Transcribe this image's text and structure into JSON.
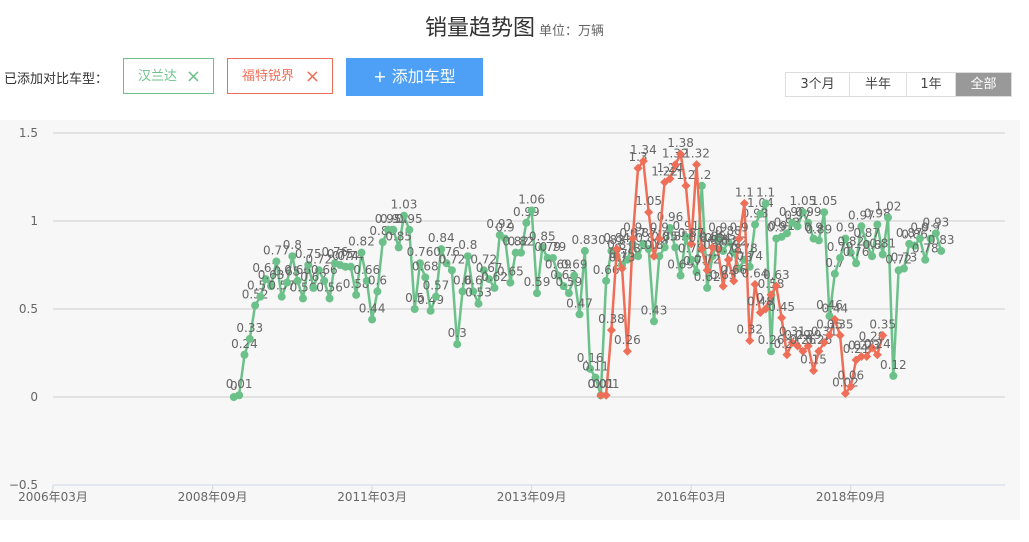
{
  "header": {
    "title": "销量趋势图",
    "unit": "单位：万辆"
  },
  "compare": {
    "label": "已添加对比车型：",
    "tags": [
      {
        "name": "汉兰达",
        "close": "×",
        "color": "#6cc18a"
      },
      {
        "name": "福特锐界",
        "close": "×",
        "color": "#ee6e57"
      }
    ],
    "add_button": "+ 添加车型"
  },
  "ranges": [
    "3个月",
    "半年",
    "1年",
    "全部"
  ],
  "ranges_selected": "全部",
  "chart_data": {
    "type": "line",
    "xlim": [
      "2006-03",
      "2021-02"
    ],
    "ylim": [
      -0.5,
      1.5
    ],
    "y_ticks": [
      "1.5",
      "1",
      "0.5",
      "0",
      "−0.5"
    ],
    "x_ticks": [
      "2006年03月",
      "2008年09月",
      "2011年03月",
      "2013年09月",
      "2016年03月",
      "2018年09月"
    ],
    "grid": true,
    "series": [
      {
        "name": "汉兰达",
        "color": "#6cc18a",
        "points": [
          [
            "2009-01",
            0.0
          ],
          [
            "2009-02",
            0.01
          ],
          [
            "2009-03",
            0.24
          ],
          [
            "2009-04",
            0.33
          ],
          [
            "2009-05",
            0.52
          ],
          [
            "2009-06",
            0.57
          ],
          [
            "2009-07",
            0.67
          ],
          [
            "2009-08",
            0.63
          ],
          [
            "2009-09",
            0.77
          ],
          [
            "2009-10",
            0.57
          ],
          [
            "2009-11",
            0.65
          ],
          [
            "2009-12",
            0.8
          ],
          [
            "2010-01",
            0.66
          ],
          [
            "2010-02",
            0.56
          ],
          [
            "2010-03",
            0.75
          ],
          [
            "2010-04",
            0.62
          ],
          [
            "2010-05",
            0.72
          ],
          [
            "2010-06",
            0.66
          ],
          [
            "2010-07",
            0.56
          ],
          [
            "2010-08",
            0.76
          ],
          [
            "2010-09",
            0.75
          ],
          [
            "2010-10",
            0.74
          ],
          [
            "2010-11",
            0.74
          ],
          [
            "2010-12",
            0.58
          ],
          [
            "2011-01",
            0.82
          ],
          [
            "2011-02",
            0.66
          ],
          [
            "2011-03",
            0.44
          ],
          [
            "2011-04",
            0.6
          ],
          [
            "2011-05",
            0.88
          ],
          [
            "2011-06",
            0.95
          ],
          [
            "2011-07",
            0.95
          ],
          [
            "2011-08",
            0.85
          ],
          [
            "2011-09",
            1.03
          ],
          [
            "2011-10",
            0.95
          ],
          [
            "2011-11",
            0.5
          ],
          [
            "2011-12",
            0.76
          ],
          [
            "2012-01",
            0.68
          ],
          [
            "2012-02",
            0.49
          ],
          [
            "2012-03",
            0.57
          ],
          [
            "2012-04",
            0.84
          ],
          [
            "2012-05",
            0.76
          ],
          [
            "2012-06",
            0.72
          ],
          [
            "2012-07",
            0.3
          ],
          [
            "2012-08",
            0.6
          ],
          [
            "2012-09",
            0.8
          ],
          [
            "2012-10",
            0.6
          ],
          [
            "2012-11",
            0.53
          ],
          [
            "2012-12",
            0.72
          ],
          [
            "2013-01",
            0.67
          ],
          [
            "2013-02",
            0.62
          ],
          [
            "2013-03",
            0.92
          ],
          [
            "2013-04",
            0.9
          ],
          [
            "2013-05",
            0.65
          ],
          [
            "2013-06",
            0.82
          ],
          [
            "2013-07",
            0.82
          ],
          [
            "2013-08",
            0.99
          ],
          [
            "2013-09",
            1.06
          ],
          [
            "2013-10",
            0.59
          ],
          [
            "2013-11",
            0.85
          ],
          [
            "2013-12",
            0.79
          ],
          [
            "2014-01",
            0.79
          ],
          [
            "2014-02",
            0.69
          ],
          [
            "2014-03",
            0.63
          ],
          [
            "2014-04",
            0.59
          ],
          [
            "2014-05",
            0.69
          ],
          [
            "2014-06",
            0.47
          ],
          [
            "2014-07",
            0.83
          ],
          [
            "2014-08",
            0.16
          ],
          [
            "2014-09",
            0.11
          ],
          [
            "2014-10",
            0.01
          ],
          [
            "2014-11",
            0.66
          ],
          [
            "2014-12",
            0.83
          ],
          [
            "2015-01",
            0.8
          ],
          [
            "2015-02",
            0.75
          ],
          [
            "2015-03",
            0.78
          ],
          [
            "2015-04",
            0.87
          ],
          [
            "2015-05",
            0.8
          ],
          [
            "2015-06",
            0.87
          ],
          [
            "2015-07",
            0.84
          ],
          [
            "2015-08",
            0.43
          ],
          [
            "2015-09",
            0.8
          ],
          [
            "2015-10",
            0.85
          ],
          [
            "2015-11",
            0.96
          ],
          [
            "2015-12",
            0.85
          ],
          [
            "2016-01",
            0.69
          ],
          [
            "2016-02",
            0.91
          ],
          [
            "2016-03",
            0.78
          ],
          [
            "2016-04",
            0.71
          ],
          [
            "2016-05",
            1.2
          ],
          [
            "2016-06",
            0.62
          ],
          [
            "2016-07",
            0.8
          ],
          [
            "2016-08",
            0.9
          ],
          [
            "2016-09",
            0.83
          ],
          [
            "2016-10",
            0.88
          ],
          [
            "2016-11",
            0.82
          ],
          [
            "2016-12",
            0.73
          ],
          [
            "2017-01",
            0.78
          ],
          [
            "2017-02",
            0.74
          ],
          [
            "2017-03",
            0.98
          ],
          [
            "2017-04",
            1.04
          ],
          [
            "2017-05",
            1.1
          ],
          [
            "2017-06",
            0.26
          ],
          [
            "2017-07",
            0.9
          ],
          [
            "2017-08",
            0.91
          ],
          [
            "2017-09",
            0.93
          ],
          [
            "2017-10",
            0.99
          ],
          [
            "2017-11",
            0.97
          ],
          [
            "2017-12",
            1.05
          ],
          [
            "2018-01",
            0.99
          ],
          [
            "2018-02",
            0.9
          ],
          [
            "2018-03",
            0.89
          ],
          [
            "2018-04",
            1.05
          ],
          [
            "2018-05",
            0.46
          ],
          [
            "2018-06",
            0.7
          ],
          [
            "2018-07",
            0.79
          ],
          [
            "2018-08",
            0.9
          ],
          [
            "2018-09",
            0.82
          ],
          [
            "2018-10",
            0.76
          ],
          [
            "2018-11",
            0.97
          ],
          [
            "2018-12",
            0.87
          ],
          [
            "2019-01",
            0.8
          ],
          [
            "2019-02",
            0.98
          ],
          [
            "2019-03",
            0.81
          ],
          [
            "2019-04",
            1.02
          ],
          [
            "2019-05",
            0.12
          ],
          [
            "2019-06",
            0.72
          ],
          [
            "2019-07",
            0.73
          ],
          [
            "2019-08",
            0.87
          ],
          [
            "2019-09",
            0.86
          ],
          [
            "2019-10",
            0.9
          ],
          [
            "2019-11",
            0.78
          ],
          [
            "2019-12",
            0.9
          ],
          [
            "2020-01",
            0.93
          ],
          [
            "2020-02",
            0.83
          ]
        ]
      },
      {
        "name": "福特锐界",
        "color": "#ee6e57",
        "points": [
          [
            "2014-10",
            0.01
          ],
          [
            "2014-11",
            0.01
          ],
          [
            "2014-12",
            0.38
          ],
          [
            "2015-01",
            0.84
          ],
          [
            "2015-02",
            0.73
          ],
          [
            "2015-03",
            0.26
          ],
          [
            "2015-04",
            0.9
          ],
          [
            "2015-05",
            1.3
          ],
          [
            "2015-06",
            1.34
          ],
          [
            "2015-07",
            1.05
          ],
          [
            "2015-08",
            0.8
          ],
          [
            "2015-09",
            0.9
          ],
          [
            "2015-10",
            1.22
          ],
          [
            "2015-11",
            1.24
          ],
          [
            "2015-12",
            1.32
          ],
          [
            "2016-01",
            1.38
          ],
          [
            "2016-02",
            1.2
          ],
          [
            "2016-03",
            0.87
          ],
          [
            "2016-04",
            1.32
          ],
          [
            "2016-05",
            0.84
          ],
          [
            "2016-06",
            0.72
          ],
          [
            "2016-07",
            0.85
          ],
          [
            "2016-08",
            0.84
          ],
          [
            "2016-09",
            0.63
          ],
          [
            "2016-10",
            0.78
          ],
          [
            "2016-11",
            0.66
          ],
          [
            "2016-12",
            0.9
          ],
          [
            "2017-01",
            1.1
          ],
          [
            "2017-02",
            0.32
          ],
          [
            "2017-03",
            0.64
          ],
          [
            "2017-04",
            0.48
          ],
          [
            "2017-05",
            0.5
          ],
          [
            "2017-06",
            0.58
          ],
          [
            "2017-07",
            0.63
          ],
          [
            "2017-08",
            0.45
          ],
          [
            "2017-09",
            0.24
          ],
          [
            "2017-10",
            0.31
          ],
          [
            "2017-11",
            0.29
          ],
          [
            "2017-12",
            0.26
          ],
          [
            "2018-01",
            0.29
          ],
          [
            "2018-02",
            0.15
          ],
          [
            "2018-03",
            0.26
          ],
          [
            "2018-04",
            0.31
          ],
          [
            "2018-05",
            0.35
          ],
          [
            "2018-06",
            0.44
          ],
          [
            "2018-07",
            0.35
          ],
          [
            "2018-08",
            0.02
          ],
          [
            "2018-09",
            0.06
          ],
          [
            "2018-10",
            0.21
          ],
          [
            "2018-11",
            0.23
          ],
          [
            "2018-12",
            0.23
          ],
          [
            "2019-01",
            0.28
          ],
          [
            "2019-02",
            0.24
          ],
          [
            "2019-03",
            0.35
          ]
        ]
      }
    ]
  }
}
